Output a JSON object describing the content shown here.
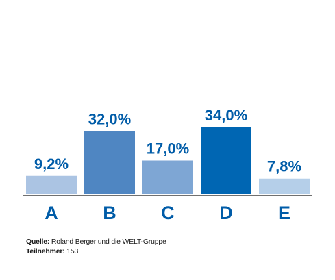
{
  "chart_data": {
    "type": "bar",
    "categories": [
      "A",
      "B",
      "C",
      "D",
      "E"
    ],
    "values": [
      9.2,
      32.0,
      17.0,
      34.0,
      7.8
    ],
    "value_labels": [
      "9,2%",
      "32,0%",
      "17,0%",
      "34,0%",
      "7,8%"
    ],
    "colors": [
      "#abc4e3",
      "#4f86c2",
      "#7ea6d4",
      "#0066b3",
      "#b5cfe9"
    ],
    "label_color": "#005ca8",
    "ylim": [
      0,
      34
    ],
    "grid": false,
    "title": "",
    "xlabel": "",
    "ylabel": ""
  },
  "footer": {
    "source_label": "Quelle:",
    "source_text": "Roland Berger und die WELT-Gruppe",
    "participants_label": "Teilnehmer:",
    "participants_text": "153"
  }
}
